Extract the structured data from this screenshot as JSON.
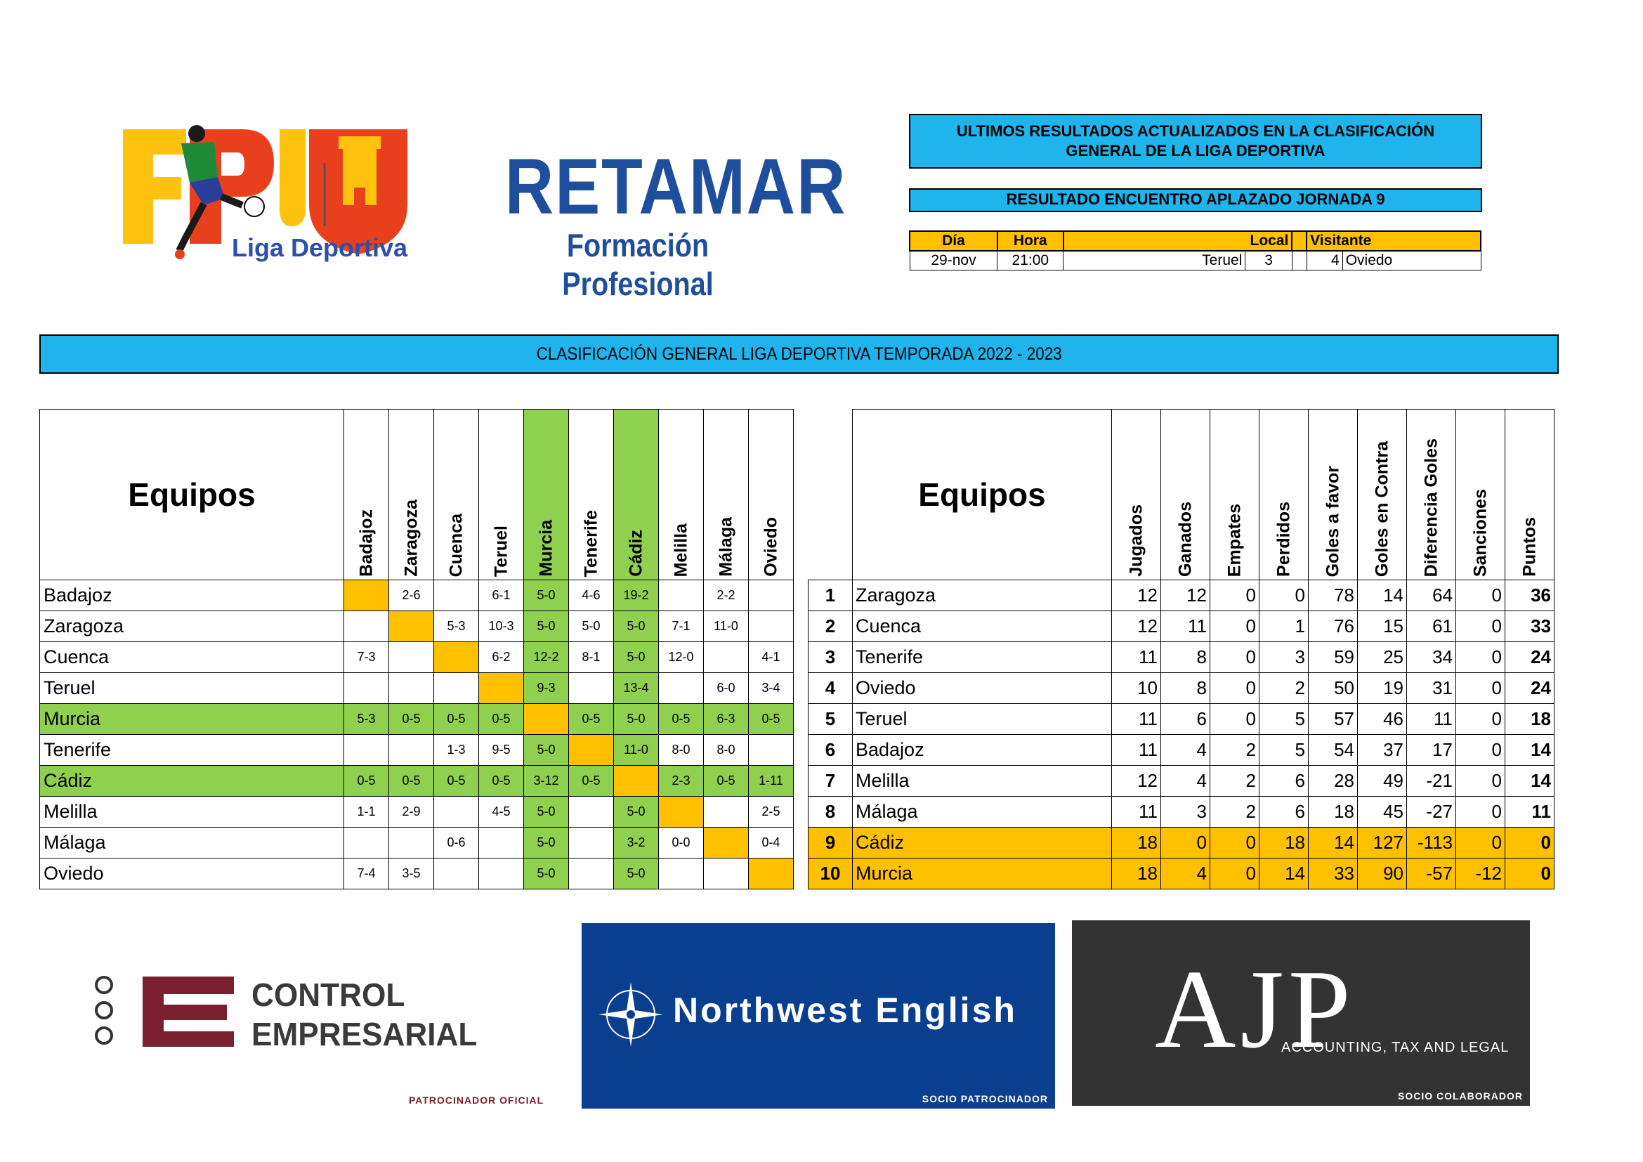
{
  "header": {
    "fpu_letters": "FPU",
    "fpu_subtitle": "Liga Deportiva",
    "school_name": "RETAMAR",
    "school_sub": "Formación Profesional"
  },
  "update_box": {
    "line1": "ULTIMOS RESULTADOS ACTUALIZADOS EN LA CLASIFICACIÓN",
    "line2": "GENERAL DE LA LIGA DEPORTIVA"
  },
  "postponed": {
    "label": "RESULTADO ENCUENTRO APLAZADO JORNADA 9",
    "columns": {
      "day": "Día",
      "time": "Hora",
      "local": "Local",
      "visitor": "Visitante"
    },
    "match": {
      "day": "29-nov",
      "time": "21:00",
      "local_team": "Teruel",
      "local_goals": "3",
      "visitor_goals": "4",
      "visitor_team": "Oviedo"
    }
  },
  "title": "CLASIFICACIÓN GENERAL LIGA DEPORTIVA TEMPORADA 2022 - 2023",
  "matrix": {
    "header": "Equipos",
    "teams": [
      "Badajoz",
      "Zaragoza",
      "Cuenca",
      "Teruel",
      "Murcia",
      "Tenerife",
      "Cádiz",
      "Melilla",
      "Málaga",
      "Oviedo"
    ],
    "rows": [
      [
        "",
        "2-6",
        "",
        "6-1",
        "5-0",
        "4-6",
        "19-2",
        "",
        "2-2",
        ""
      ],
      [
        "",
        "",
        "5-3",
        "10-3",
        "5-0",
        "5-0",
        "5-0",
        "7-1",
        "11-0",
        ""
      ],
      [
        "7-3",
        "",
        "",
        "6-2",
        "12-2",
        "8-1",
        "5-0",
        "12-0",
        "",
        "4-1"
      ],
      [
        "",
        "",
        "",
        "",
        "9-3",
        "",
        "13-4",
        "",
        "6-0",
        "3-4"
      ],
      [
        "5-3",
        "0-5",
        "0-5",
        "0-5",
        "",
        "0-5",
        "5-0",
        "0-5",
        "6-3",
        "0-5"
      ],
      [
        "",
        "",
        "1-3",
        "9-5",
        "5-0",
        "",
        "11-0",
        "8-0",
        "8-0",
        ""
      ],
      [
        "0-5",
        "0-5",
        "0-5",
        "0-5",
        "3-12",
        "0-5",
        "",
        "2-3",
        "0-5",
        "1-11"
      ],
      [
        "1-1",
        "2-9",
        "",
        "4-5",
        "5-0",
        "",
        "5-0",
        "",
        "",
        "2-5"
      ],
      [
        "",
        "",
        "0-6",
        "",
        "5-0",
        "",
        "3-2",
        "0-0",
        "",
        "0-4"
      ],
      [
        "7-4",
        "3-5",
        "",
        "",
        "5-0",
        "",
        "5-0",
        "",
        "",
        ""
      ]
    ]
  },
  "standings": {
    "header": "Equipos",
    "columns": [
      "Jugados",
      "Ganados",
      "Empates",
      "Perdidos",
      "Goles a favor",
      "Goles en Contra",
      "Diferencia Goles",
      "Sanciones",
      "Puntos"
    ],
    "rows": [
      {
        "rank": "1",
        "team": "Zaragoza",
        "vals": [
          "12",
          "12",
          "0",
          "0",
          "78",
          "14",
          "64",
          "0",
          "36"
        ]
      },
      {
        "rank": "2",
        "team": "Cuenca",
        "vals": [
          "12",
          "11",
          "0",
          "1",
          "76",
          "15",
          "61",
          "0",
          "33"
        ]
      },
      {
        "rank": "3",
        "team": "Tenerife",
        "vals": [
          "11",
          "8",
          "0",
          "3",
          "59",
          "25",
          "34",
          "0",
          "24"
        ]
      },
      {
        "rank": "4",
        "team": "Oviedo",
        "vals": [
          "10",
          "8",
          "0",
          "2",
          "50",
          "19",
          "31",
          "0",
          "24"
        ]
      },
      {
        "rank": "5",
        "team": "Teruel",
        "vals": [
          "11",
          "6",
          "0",
          "5",
          "57",
          "46",
          "11",
          "0",
          "18"
        ]
      },
      {
        "rank": "6",
        "team": "Badajoz",
        "vals": [
          "11",
          "4",
          "2",
          "5",
          "54",
          "37",
          "17",
          "0",
          "14"
        ]
      },
      {
        "rank": "7",
        "team": "Melilla",
        "vals": [
          "12",
          "4",
          "2",
          "6",
          "28",
          "49",
          "-21",
          "0",
          "14"
        ]
      },
      {
        "rank": "8",
        "team": "Málaga",
        "vals": [
          "11",
          "3",
          "2",
          "6",
          "18",
          "45",
          "-27",
          "0",
          "11"
        ]
      },
      {
        "rank": "9",
        "team": "Cádiz",
        "vals": [
          "18",
          "0",
          "0",
          "18",
          "14",
          "127",
          "-113",
          "0",
          "0"
        ]
      },
      {
        "rank": "10",
        "team": "Murcia",
        "vals": [
          "18",
          "4",
          "0",
          "14",
          "33",
          "90",
          "-57",
          "-12",
          "0"
        ]
      }
    ]
  },
  "sponsors": {
    "control_line1": "CONTROL",
    "control_line2": "EMPRESARIAL",
    "control_tag": "PATROCINADOR OFICIAL",
    "northwest_name": "Northwest English",
    "northwest_tag": "SOCIO PATROCINADOR",
    "ajp_letters": "AJP",
    "ajp_sub": "ACCOUNTING, TAX AND LEGAL",
    "ajp_tag": "SOCIO COLABORADOR"
  },
  "colors": {
    "blue": "#1fb4ec",
    "orange": "#ffc000",
    "green": "#8fd14f",
    "navy": "#1f4e9c"
  }
}
